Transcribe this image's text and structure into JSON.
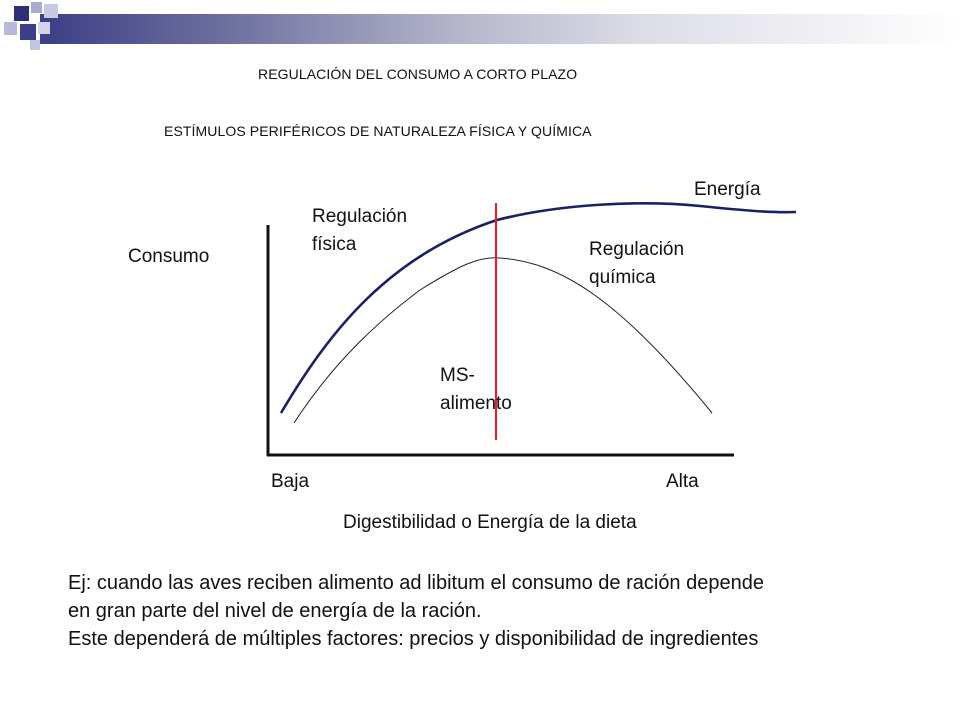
{
  "header": {
    "title": "REGULACIÓN DEL CONSUMO A CORTO PLAZO",
    "subtitle": "ESTÍMULOS PERIFÉRICOS DE NATURALEZA FÍSICA Y QUÍMICA"
  },
  "diagram": {
    "y_axis_label": "Consumo",
    "x_axis_label": "Digestibilidad o Energía de la dieta",
    "x_low_label": "Baja",
    "x_high_label": "Alta",
    "curve_energy_label": "Energía",
    "region_physical_line1": "Regulación",
    "region_physical_line2": "física",
    "region_chemical_line1": "Regulación",
    "region_chemical_line2": "química",
    "divider_label_line1": "MS-",
    "divider_label_line2": "alimento"
  },
  "notes": {
    "line1": "Ej: cuando las aves reciben alimento ad libitum el consumo de ración depende",
    "line2": "en gran parte del nivel de energía de la ración.",
    "line3": "Este dependerá de múltiples factores: precios y disponibilidad  de ingredientes"
  },
  "colors": {
    "energy_curve": "#1a1f66",
    "divider_line": "#d9252b",
    "secondary_curve": "#222222",
    "accent_dark": "#3c3e86",
    "accent_light": "#a9abd0"
  }
}
